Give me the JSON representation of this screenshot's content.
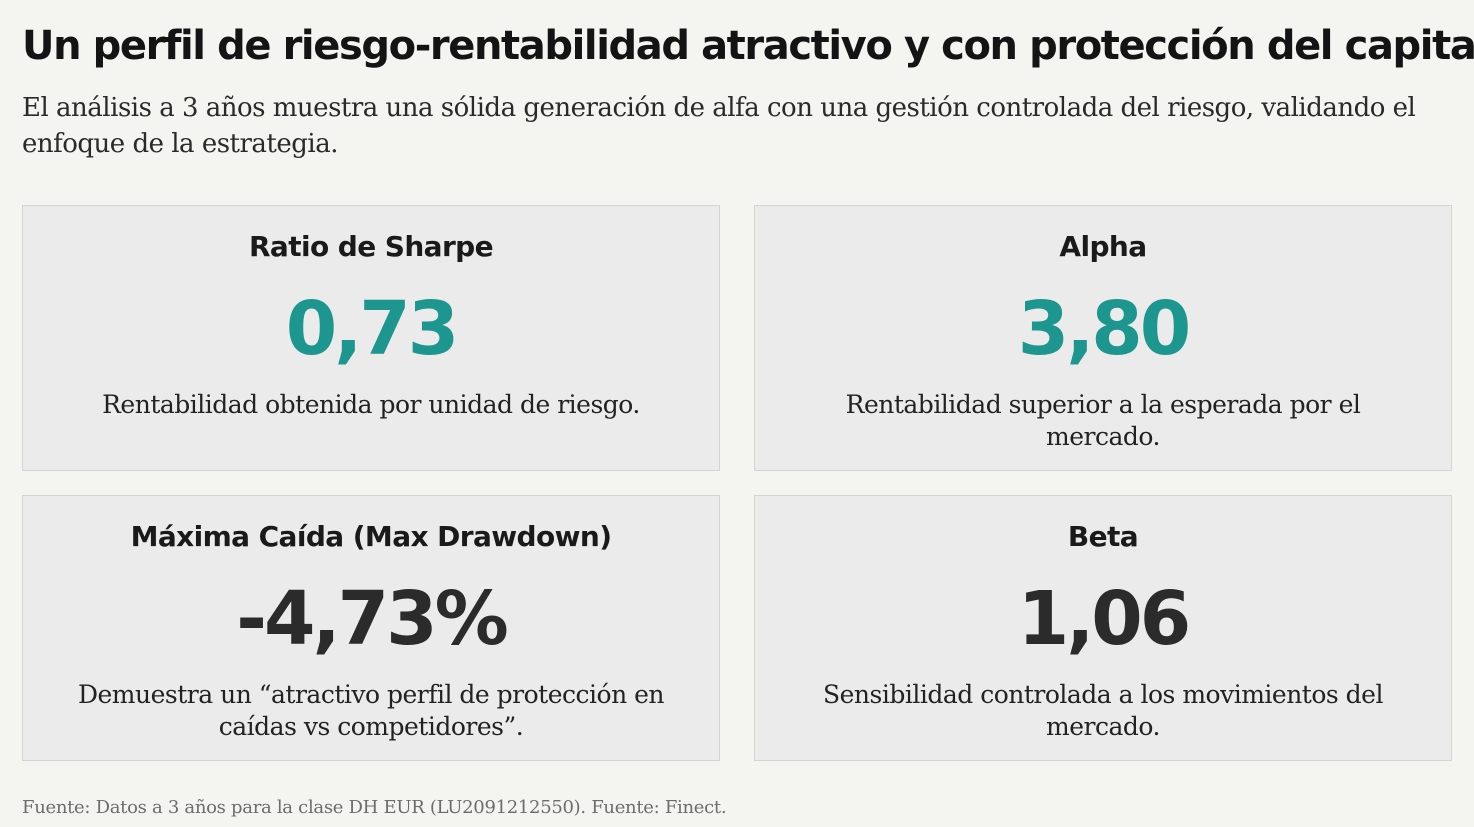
{
  "header": {
    "title": "Un perfil de riesgo-rentabilidad atractivo y con protección del capital",
    "subtitle": "El análisis a 3 años muestra una sólida generación de alfa con una gestión controlada del riesgo, validando el enfoque de la estrategia."
  },
  "metrics": [
    {
      "label": "Ratio de Sharpe",
      "value": "0,73",
      "description": "Rentabilidad obtenida por unidad de riesgo."
    },
    {
      "label": "Alpha",
      "value": "3,80",
      "description": "Rentabilidad superior a la esperada por el mercado."
    },
    {
      "label": "Máxima Caída (Max Drawdown)",
      "value": "-4,73%",
      "description": "Demuestra un “atractivo perfil de protección en caídas vs competidores”."
    },
    {
      "label": "Beta",
      "value": "1,06",
      "description": "Sensibilidad controlada a los movimientos del mercado."
    }
  ],
  "footer": {
    "source": "Fuente: Datos a 3 años para la clase DH EUR (LU2091212550). Fuente: Finect."
  },
  "colors": {
    "accent_value": "#1e9690",
    "dark_value": "#2b2b2b",
    "card_background": "#ebebeb",
    "page_background": "#f4f4f0"
  }
}
